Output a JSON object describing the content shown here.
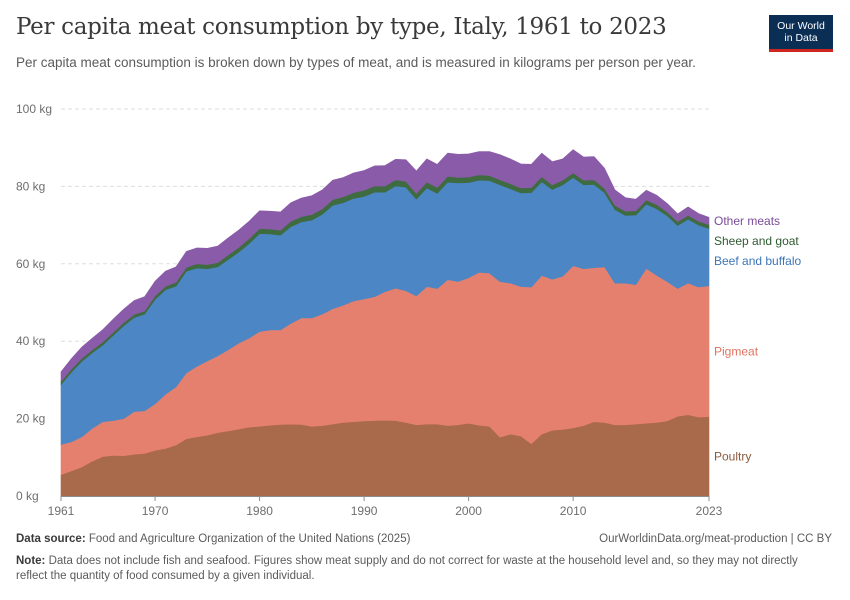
{
  "header": {
    "title": "Per capita meat consumption by type, Italy, 1961 to 2023",
    "subtitle": "Per capita meat consumption is broken down by types of meat, and is measured in kilograms per person per year.",
    "logo_line1": "Our World",
    "logo_line2": "in Data"
  },
  "footer": {
    "source_label": "Data source:",
    "source_text": "Food and Agriculture Organization of the United Nations (2025)",
    "url": "OurWorldinData.org/meat-production | CC BY",
    "note_label": "Note:",
    "note_text": "Data does not include fish and seafood. Figures show meat supply and do not correct for waste at the household level and, so they may not directly reflect the quantity of food consumed by a given individual."
  },
  "chart_data": {
    "type": "area",
    "stacked": true,
    "x": [
      1961,
      1962,
      1963,
      1964,
      1965,
      1966,
      1967,
      1968,
      1969,
      1970,
      1971,
      1972,
      1973,
      1974,
      1975,
      1976,
      1977,
      1978,
      1979,
      1980,
      1981,
      1982,
      1983,
      1984,
      1985,
      1986,
      1987,
      1988,
      1989,
      1990,
      1991,
      1992,
      1993,
      1994,
      1995,
      1996,
      1997,
      1998,
      1999,
      2000,
      2001,
      2002,
      2003,
      2004,
      2005,
      2006,
      2007,
      2008,
      2009,
      2010,
      2011,
      2012,
      2013,
      2014,
      2015,
      2016,
      2017,
      2018,
      2019,
      2020,
      2021,
      2022,
      2023
    ],
    "x_ticks": [
      "1961",
      "1970",
      "1980",
      "1990",
      "2000",
      "2010",
      "2023"
    ],
    "x_tick_values": [
      1961,
      1970,
      1980,
      1990,
      2000,
      2010,
      2023
    ],
    "y_ticks": [
      "0 kg",
      "20 kg",
      "40 kg",
      "60 kg",
      "80 kg",
      "100 kg"
    ],
    "y_tick_values": [
      0,
      20,
      40,
      60,
      80,
      100
    ],
    "ylim": [
      0,
      100
    ],
    "grid": "horizontal dashed",
    "legend": "right, inline labels",
    "series": [
      {
        "name": "Poultry",
        "color": "#a86a4a",
        "values": [
          5.5,
          6.5,
          7.5,
          9,
          10.2,
          10.5,
          10.4,
          10.8,
          11,
          11.8,
          12.3,
          13.2,
          14.8,
          15.3,
          15.7,
          16.4,
          16.8,
          17.3,
          17.8,
          18,
          18.3,
          18.5,
          18.6,
          18.5,
          18,
          18.2,
          18.6,
          19,
          19.2,
          19.4,
          19.5,
          19.6,
          19.5,
          19,
          18.4,
          18.6,
          18.6,
          18.2,
          18.4,
          18.8,
          18.3,
          18,
          15.2,
          16,
          15.5,
          13.5,
          16,
          17,
          17.2,
          17.6,
          18.2,
          19.2,
          19,
          18.4,
          18.4,
          18.6,
          18.8,
          19,
          19.4,
          20.6,
          21,
          20.4,
          20.5
        ]
      },
      {
        "name": "Pigmeat",
        "color": "#e6806e",
        "values": [
          7.8,
          7.5,
          7.8,
          8.5,
          9,
          9,
          9.6,
          11,
          11,
          12,
          14,
          15,
          17,
          18.2,
          19.2,
          19.8,
          21,
          22.2,
          23,
          24.5,
          24.6,
          24.4,
          26,
          27.5,
          28,
          28.8,
          29.8,
          30.3,
          31.2,
          31.5,
          32,
          33.2,
          34.2,
          34,
          33.3,
          35.5,
          35,
          37.7,
          37,
          37.6,
          39.5,
          39.6,
          40.2,
          39,
          38.6,
          40.5,
          41,
          39,
          39.6,
          41.9,
          40.5,
          39.8,
          40.2,
          36.6,
          36.6,
          36,
          40,
          38,
          36,
          33,
          34,
          33.6,
          33.8
        ]
      },
      {
        "name": "Beef and buffalo",
        "color": "#4c86c4",
        "values": [
          15.5,
          18,
          19.5,
          19.5,
          19.8,
          22,
          24,
          24.3,
          25,
          27,
          27,
          26,
          26.3,
          25.4,
          23.8,
          23,
          23.3,
          23.5,
          24.4,
          25.3,
          24.8,
          24.5,
          25,
          24.8,
          25.3,
          25.8,
          26.7,
          26.5,
          26.5,
          26.5,
          27,
          25.7,
          26.4,
          26.8,
          25,
          25.5,
          24.6,
          25.2,
          25.5,
          24.6,
          23.8,
          23.9,
          25,
          24.4,
          24.2,
          24.4,
          24.2,
          23.2,
          23.6,
          22.8,
          21.7,
          21.5,
          19.2,
          19,
          17.5,
          18,
          16.6,
          17.2,
          17,
          16.3,
          16.5,
          16,
          14.8
        ]
      },
      {
        "name": "Sheep and goat",
        "color": "#3f6b41",
        "values": [
          0.8,
          0.8,
          0.8,
          0.8,
          0.8,
          0.8,
          0.8,
          0.8,
          0.8,
          0.9,
          0.9,
          1,
          1,
          1.1,
          1.1,
          1.1,
          1.2,
          1.2,
          1.3,
          1.3,
          1.3,
          1.3,
          1.4,
          1.4,
          1.4,
          1.4,
          1.5,
          1.5,
          1.5,
          1.6,
          1.6,
          1.6,
          1.6,
          1.5,
          1.5,
          1.5,
          1.5,
          1.5,
          1.4,
          1.4,
          1.4,
          1.3,
          1.3,
          1.3,
          1.3,
          1.3,
          1.3,
          1.2,
          1.2,
          1.2,
          1.2,
          1.2,
          1.1,
          1.1,
          1.1,
          1.1,
          1.1,
          1.1,
          1,
          1,
          1,
          1,
          1
        ]
      },
      {
        "name": "Other meats",
        "color": "#8a5ba8",
        "values": [
          2.5,
          2.7,
          2.9,
          3,
          3.2,
          3.4,
          3.5,
          3.6,
          3.7,
          3.8,
          3.9,
          4,
          4.1,
          4.1,
          4.2,
          4.3,
          4.4,
          4.5,
          4.5,
          4.6,
          4.6,
          4.7,
          4.8,
          4.8,
          4.9,
          4.9,
          5,
          5,
          5.1,
          5.1,
          5.2,
          5.3,
          5.3,
          5.6,
          5.8,
          6,
          6,
          6,
          6,
          6,
          6,
          6.2,
          6.5,
          6.4,
          6.2,
          6,
          6.1,
          6,
          5.5,
          6,
          6,
          6,
          5.2,
          4,
          3.5,
          3,
          2.5,
          2.4,
          2.2,
          2,
          2.2,
          2,
          1.9
        ]
      }
    ]
  }
}
